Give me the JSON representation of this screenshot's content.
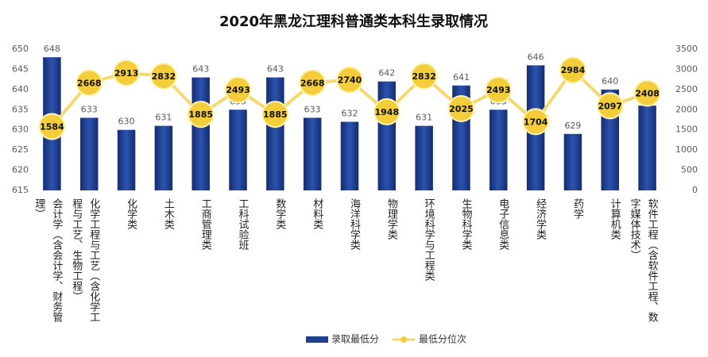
{
  "chart_data": {
    "type": "bar-line",
    "title": "2020年黑龙江理科普通类本科生录取情况",
    "categories": [
      "会计学（含会计学、财务管理）",
      "化学工程与工艺（含化学工程与工艺、生物工程）",
      "化学类",
      "土木类",
      "工商管理类",
      "工科试验班",
      "数学类",
      "材料类",
      "海洋科学类",
      "物理学类",
      "环境科学与工程类",
      "生物科学类",
      "电子信息类",
      "经济学类",
      "药学",
      "计算机类",
      "软件工程（含软件工程、数字媒体技术）"
    ],
    "series": [
      {
        "name": "录取最低分",
        "type": "bar",
        "color": "#1f3f8f",
        "values": [
          648,
          633,
          630,
          631,
          643,
          635,
          643,
          633,
          632,
          642,
          631,
          641,
          635,
          646,
          629,
          640,
          636
        ]
      },
      {
        "name": "最低分位次",
        "type": "line",
        "axis": "y2",
        "color": "#f7d870",
        "values": [
          1584,
          2668,
          2913,
          2832,
          1885,
          2493,
          1885,
          2668,
          2740,
          1948,
          2832,
          2025,
          2493,
          1704,
          2984,
          2097,
          2408
        ]
      }
    ],
    "ylim": [
      615,
      650
    ],
    "yticks": [
      615,
      620,
      625,
      630,
      635,
      640,
      645,
      650
    ],
    "y2lim": [
      0,
      3500
    ],
    "y2ticks": [
      0,
      500,
      1000,
      1500,
      2000,
      2500,
      3000,
      3500
    ],
    "legend": "bottom"
  }
}
